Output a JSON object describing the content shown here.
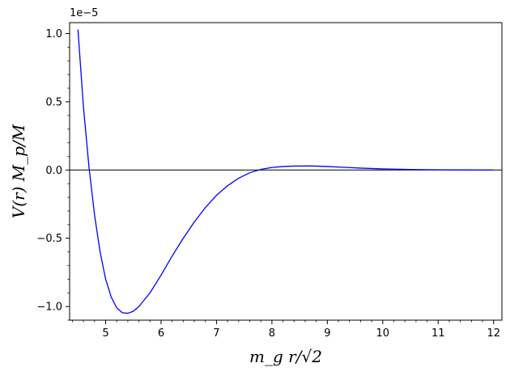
{
  "chart_data": {
    "type": "line",
    "title": "",
    "xlabel": "m_g r/√2",
    "ylabel": "V(r) M_p/M",
    "y_offset_text": "1e−5",
    "xlim": [
      4.35,
      12.15
    ],
    "ylim": [
      -1.1,
      1.08
    ],
    "x_ticks": [
      5,
      6,
      7,
      8,
      9,
      10,
      11,
      12
    ],
    "x_tick_labels": [
      "5",
      "6",
      "7",
      "8",
      "9",
      "10",
      "11",
      "12"
    ],
    "y_ticks": [
      -1.0,
      -0.5,
      0.0,
      0.5,
      1.0
    ],
    "y_tick_labels": [
      "−1.0",
      "−0.5",
      "0.0",
      "0.5",
      "1.0"
    ],
    "grid": false,
    "zero_line": true,
    "series": [
      {
        "color": "#0000ff",
        "x": [
          4.5,
          4.6,
          4.7,
          4.8,
          4.9,
          5.0,
          5.1,
          5.2,
          5.3,
          5.4,
          5.5,
          5.6,
          5.8,
          6.0,
          6.2,
          6.4,
          6.6,
          6.8,
          7.0,
          7.2,
          7.4,
          7.6,
          7.8,
          8.0,
          8.2,
          8.4,
          8.6,
          8.8,
          9.0,
          9.2,
          9.4,
          9.6,
          9.8,
          10.0,
          10.5,
          11.0,
          11.5,
          12.0
        ],
        "y": [
          1.03,
          0.46,
          0.02,
          -0.33,
          -0.6,
          -0.8,
          -0.93,
          -1.01,
          -1.045,
          -1.05,
          -1.035,
          -1.0,
          -0.9,
          -0.77,
          -0.63,
          -0.5,
          -0.38,
          -0.275,
          -0.185,
          -0.115,
          -0.06,
          -0.02,
          0.005,
          0.019,
          0.026,
          0.029,
          0.03,
          0.029,
          0.026,
          0.022,
          0.018,
          0.014,
          0.011,
          0.008,
          0.004,
          0.002,
          0.001,
          0.0005
        ]
      }
    ]
  }
}
